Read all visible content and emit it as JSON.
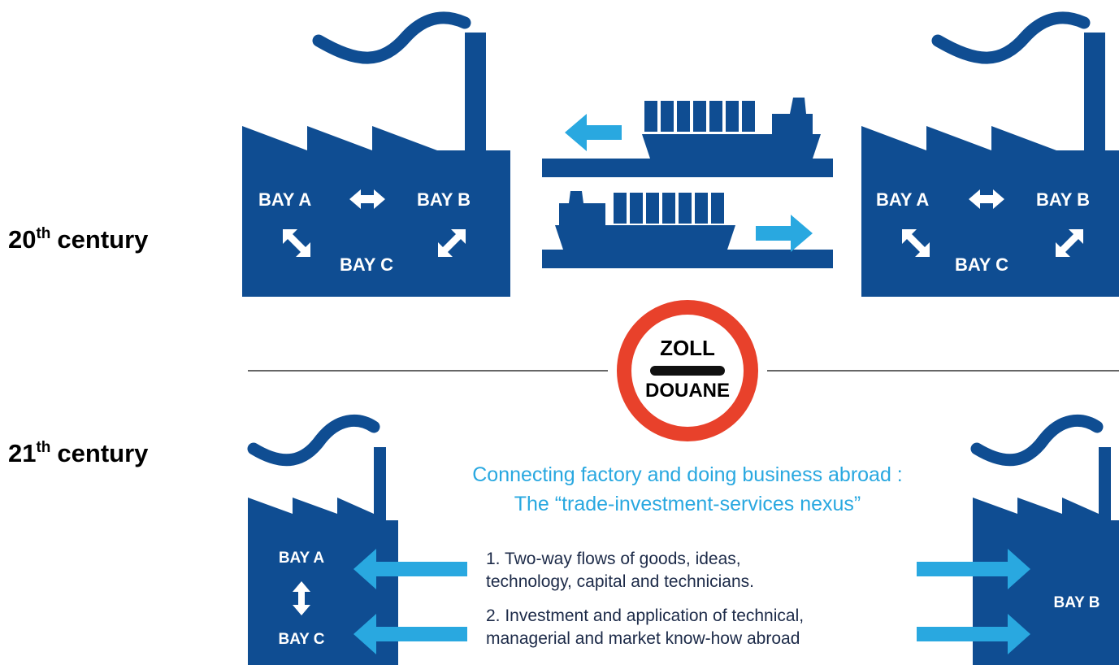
{
  "rows": [
    {
      "ordinal": "20",
      "suffix": "th",
      "text": "century"
    },
    {
      "ordinal": "21",
      "suffix": "th",
      "text": "century"
    }
  ],
  "top": {
    "left_factory": {
      "bays": [
        "BAY A",
        "BAY B",
        "BAY C"
      ]
    },
    "right_factory": {
      "bays": [
        "BAY A",
        "BAY B",
        "BAY C"
      ]
    }
  },
  "customs_sign": {
    "top": "ZOLL",
    "bottom": "DOUANE"
  },
  "nexus": {
    "title_lines": [
      "Connecting factory and doing business abroad :",
      "The “trade-investment-services nexus”"
    ],
    "items": [
      {
        "lines": [
          "1. Two-way flows of goods, ideas,",
          "technology, capital and technicians."
        ]
      },
      {
        "lines": [
          "2. Investment and application of technical,",
          "managerial and market know-how abroad"
        ]
      }
    ]
  },
  "bottom": {
    "left_factory": {
      "bays": [
        "BAY A",
        "BAY C"
      ]
    },
    "right_factory": {
      "bays": [
        "BAY B"
      ]
    }
  }
}
